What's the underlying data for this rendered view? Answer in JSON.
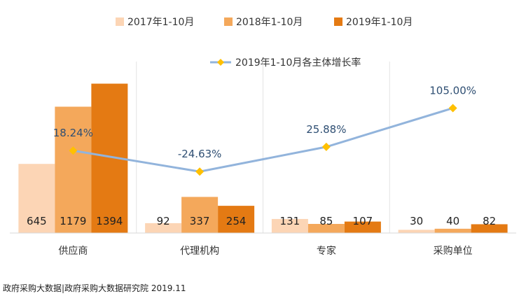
{
  "chart_data": {
    "type": "bar",
    "categories": [
      "供应商",
      "代理机构",
      "专家",
      "采购单位"
    ],
    "series": [
      {
        "name": "2017年1-10月",
        "values": [
          645,
          92,
          131,
          30
        ],
        "color": "#FCD5B5"
      },
      {
        "name": "2018年1-10月",
        "values": [
          1179,
          337,
          85,
          40
        ],
        "color": "#F4A85B"
      },
      {
        "name": "2019年1-10月",
        "values": [
          1394,
          254,
          107,
          82
        ],
        "color": "#E47A13"
      }
    ],
    "line_series": {
      "name": "2019年1-10月各主体增长率",
      "values": [
        18.24,
        -24.63,
        25.88,
        105.0
      ],
      "labels": [
        "18.24%",
        "-24.63%",
        "25.88%",
        "105.00%"
      ],
      "line_color": "#92B4DC",
      "marker_color": "#FFC000"
    },
    "bar_ylim": [
      0,
      1600
    ],
    "line_ylim": [
      -150,
      200
    ],
    "grid": "vertical separators between categories",
    "legend": "top-center"
  },
  "source": "政府采购大数据|政府采购大数据研究院 2019.11"
}
